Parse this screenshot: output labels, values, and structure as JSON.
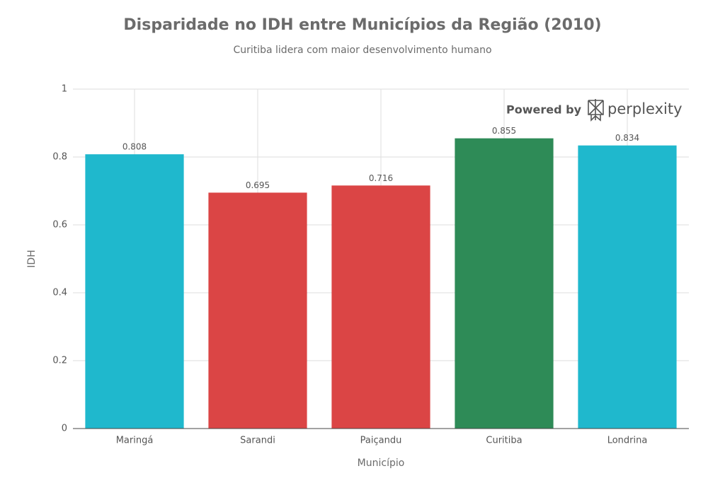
{
  "chart_data": {
    "type": "bar",
    "title": "Disparidade no IDH entre Municípios da Região (2010)",
    "subtitle": "Curitiba lidera com maior desenvolvimento humano",
    "x_label": "Município",
    "y_label": "IDH",
    "categories": [
      "Maringá",
      "Sarandi",
      "Paiçandu",
      "Curitiba",
      "Londrina"
    ],
    "values": [
      0.808,
      0.695,
      0.716,
      0.855,
      0.834
    ],
    "colors": [
      "#1fb8cd",
      "#db4545",
      "#db4545",
      "#2e8b57",
      "#1fb8cd"
    ],
    "ylim": [
      0,
      1
    ],
    "yticks": [
      0,
      0.2,
      0.4,
      0.6,
      0.8,
      1
    ],
    "grid": true,
    "watermark": {
      "prefix": "Powered by",
      "brand": "perplexity"
    }
  }
}
